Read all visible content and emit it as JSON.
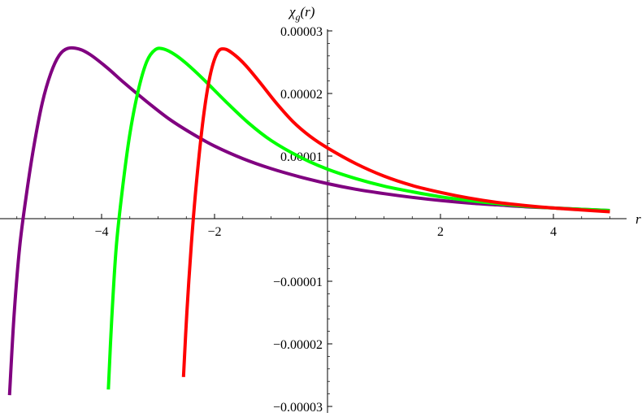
{
  "chart_data": {
    "type": "line",
    "title": "",
    "xlabel": "r",
    "ylabel": "χg(r)",
    "ylabel_parts": {
      "main": "χ",
      "sub": "g",
      "arg": "(r)"
    },
    "xlim": [
      -5.8,
      5
    ],
    "ylim": [
      -3e-05,
      3e-05
    ],
    "grid": false,
    "legend": "none",
    "x_ticks": [
      {
        "value": -4,
        "label": "−4"
      },
      {
        "value": -2,
        "label": "−2"
      },
      {
        "value": 2,
        "label": "2"
      },
      {
        "value": 4,
        "label": "4"
      }
    ],
    "y_ticks": [
      {
        "value": 3e-05,
        "label": "0.00003"
      },
      {
        "value": 2e-05,
        "label": "0.00002"
      },
      {
        "value": 1e-05,
        "label": "0.00001"
      },
      {
        "value": -1e-05,
        "label": "−0.00001"
      },
      {
        "value": -2e-05,
        "label": "−0.00002"
      },
      {
        "value": -3e-05,
        "label": "−0.00003"
      }
    ],
    "series": [
      {
        "color": "#800080",
        "points": [
          [
            -5.63,
            -2.82e-05
          ],
          [
            -5.55,
            -1.55e-05
          ],
          [
            -5.45,
            -4.5e-06
          ],
          [
            -5.33,
            3.9e-06
          ],
          [
            -5.2,
            1.15e-05
          ],
          [
            -5.05,
            1.85e-05
          ],
          [
            -4.9,
            2.32e-05
          ],
          [
            -4.75,
            2.61e-05
          ],
          [
            -4.6,
            2.72e-05
          ],
          [
            -4.4,
            2.71e-05
          ],
          [
            -4.2,
            2.62e-05
          ],
          [
            -3.9,
            2.41e-05
          ],
          [
            -3.6,
            2.17e-05
          ],
          [
            -3.2,
            1.87e-05
          ],
          [
            -2.8,
            1.59e-05
          ],
          [
            -2.4,
            1.36e-05
          ],
          [
            -2.0,
            1.16e-05
          ],
          [
            -1.5,
            9.6e-06
          ],
          [
            -1.0,
            8e-06
          ],
          [
            -0.5,
            6.7e-06
          ],
          [
            0.0,
            5.6e-06
          ],
          [
            0.5,
            4.7e-06
          ],
          [
            1.0,
            4e-06
          ],
          [
            1.5,
            3.4e-06
          ],
          [
            2.0,
            2.9e-06
          ],
          [
            2.5,
            2.5e-06
          ],
          [
            3.0,
            2.2e-06
          ],
          [
            3.5,
            1.9e-06
          ],
          [
            4.0,
            1.7e-06
          ],
          [
            4.5,
            1.5e-06
          ],
          [
            5.0,
            1.3e-06
          ]
        ]
      },
      {
        "color": "#00ff00",
        "points": [
          [
            -3.88,
            -2.73e-05
          ],
          [
            -3.82,
            -1.6e-05
          ],
          [
            -3.74,
            -4.5e-06
          ],
          [
            -3.63,
            4.8e-06
          ],
          [
            -3.5,
            1.35e-05
          ],
          [
            -3.35,
            2.05e-05
          ],
          [
            -3.2,
            2.51e-05
          ],
          [
            -3.05,
            2.7e-05
          ],
          [
            -2.9,
            2.71e-05
          ],
          [
            -2.7,
            2.62e-05
          ],
          [
            -2.5,
            2.48e-05
          ],
          [
            -2.2,
            2.23e-05
          ],
          [
            -1.8,
            1.87e-05
          ],
          [
            -1.4,
            1.53e-05
          ],
          [
            -1.0,
            1.25e-05
          ],
          [
            -0.5,
            9.9e-06
          ],
          [
            0.0,
            7.9e-06
          ],
          [
            0.5,
            6.4e-06
          ],
          [
            1.0,
            5.2e-06
          ],
          [
            1.5,
            4.3e-06
          ],
          [
            2.0,
            3.5e-06
          ],
          [
            2.5,
            2.9e-06
          ],
          [
            3.0,
            2.4e-06
          ],
          [
            3.5,
            2e-06
          ],
          [
            4.0,
            1.7e-06
          ],
          [
            4.5,
            1.5e-06
          ],
          [
            5.0,
            1.3e-06
          ]
        ]
      },
      {
        "color": "#ff0000",
        "points": [
          [
            -2.55,
            -2.53e-05
          ],
          [
            -2.49,
            -1.5e-05
          ],
          [
            -2.41,
            -4e-06
          ],
          [
            -2.32,
            5.8e-06
          ],
          [
            -2.2,
            1.6e-05
          ],
          [
            -2.08,
            2.28e-05
          ],
          [
            -1.95,
            2.65e-05
          ],
          [
            -1.82,
            2.71e-05
          ],
          [
            -1.65,
            2.62e-05
          ],
          [
            -1.45,
            2.45e-05
          ],
          [
            -1.2,
            2.18e-05
          ],
          [
            -0.9,
            1.84e-05
          ],
          [
            -0.6,
            1.54e-05
          ],
          [
            -0.3,
            1.31e-05
          ],
          [
            0.0,
            1.13e-05
          ],
          [
            0.5,
            8.8e-06
          ],
          [
            1.0,
            6.8e-06
          ],
          [
            1.5,
            5.3e-06
          ],
          [
            2.0,
            4.2e-06
          ],
          [
            2.5,
            3.3e-06
          ],
          [
            3.0,
            2.6e-06
          ],
          [
            3.5,
            2.1e-06
          ],
          [
            4.0,
            1.7e-06
          ],
          [
            4.5,
            1.4e-06
          ],
          [
            5.0,
            1.1e-06
          ]
        ]
      }
    ]
  }
}
